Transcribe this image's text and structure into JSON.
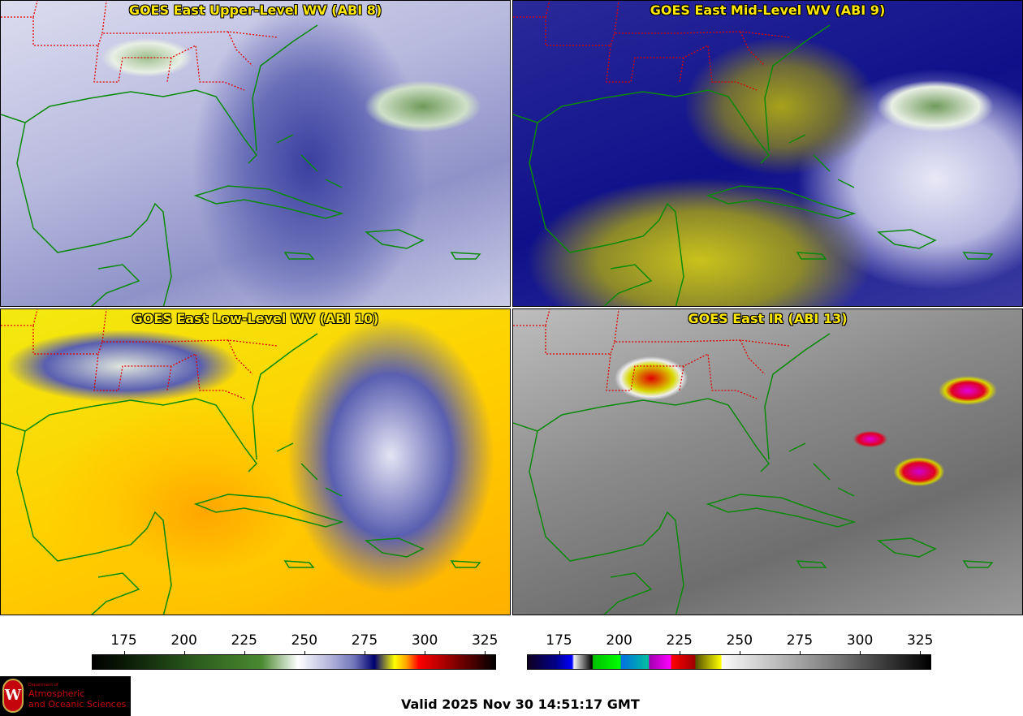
{
  "panels": [
    {
      "title": "GOES East Upper-Level WV (ABI 8)"
    },
    {
      "title": "GOES East Mid-Level WV (ABI 9)"
    },
    {
      "title": "GOES East Low-Level WV (ABI 10)"
    },
    {
      "title": "GOES East IR (ABI 13)"
    }
  ],
  "colorbars": [
    {
      "name": "wv",
      "range": [
        162,
        330
      ],
      "ticks": [
        "175",
        "200",
        "225",
        "250",
        "275",
        "300",
        "325"
      ]
    },
    {
      "name": "ir",
      "range": [
        162,
        330
      ],
      "ticks": [
        "175",
        "200",
        "225",
        "250",
        "275",
        "300",
        "325"
      ]
    }
  ],
  "logo": {
    "line1": "Department of",
    "line2": "Atmospheric",
    "line3": "and Oceanic Sciences",
    "crest": "W"
  },
  "valid": "Valid 2025 Nov 30 14:51:17 GMT",
  "colors": {
    "title": "#ffe800",
    "coast": "#0a8a0a",
    "states": "#e00000"
  }
}
